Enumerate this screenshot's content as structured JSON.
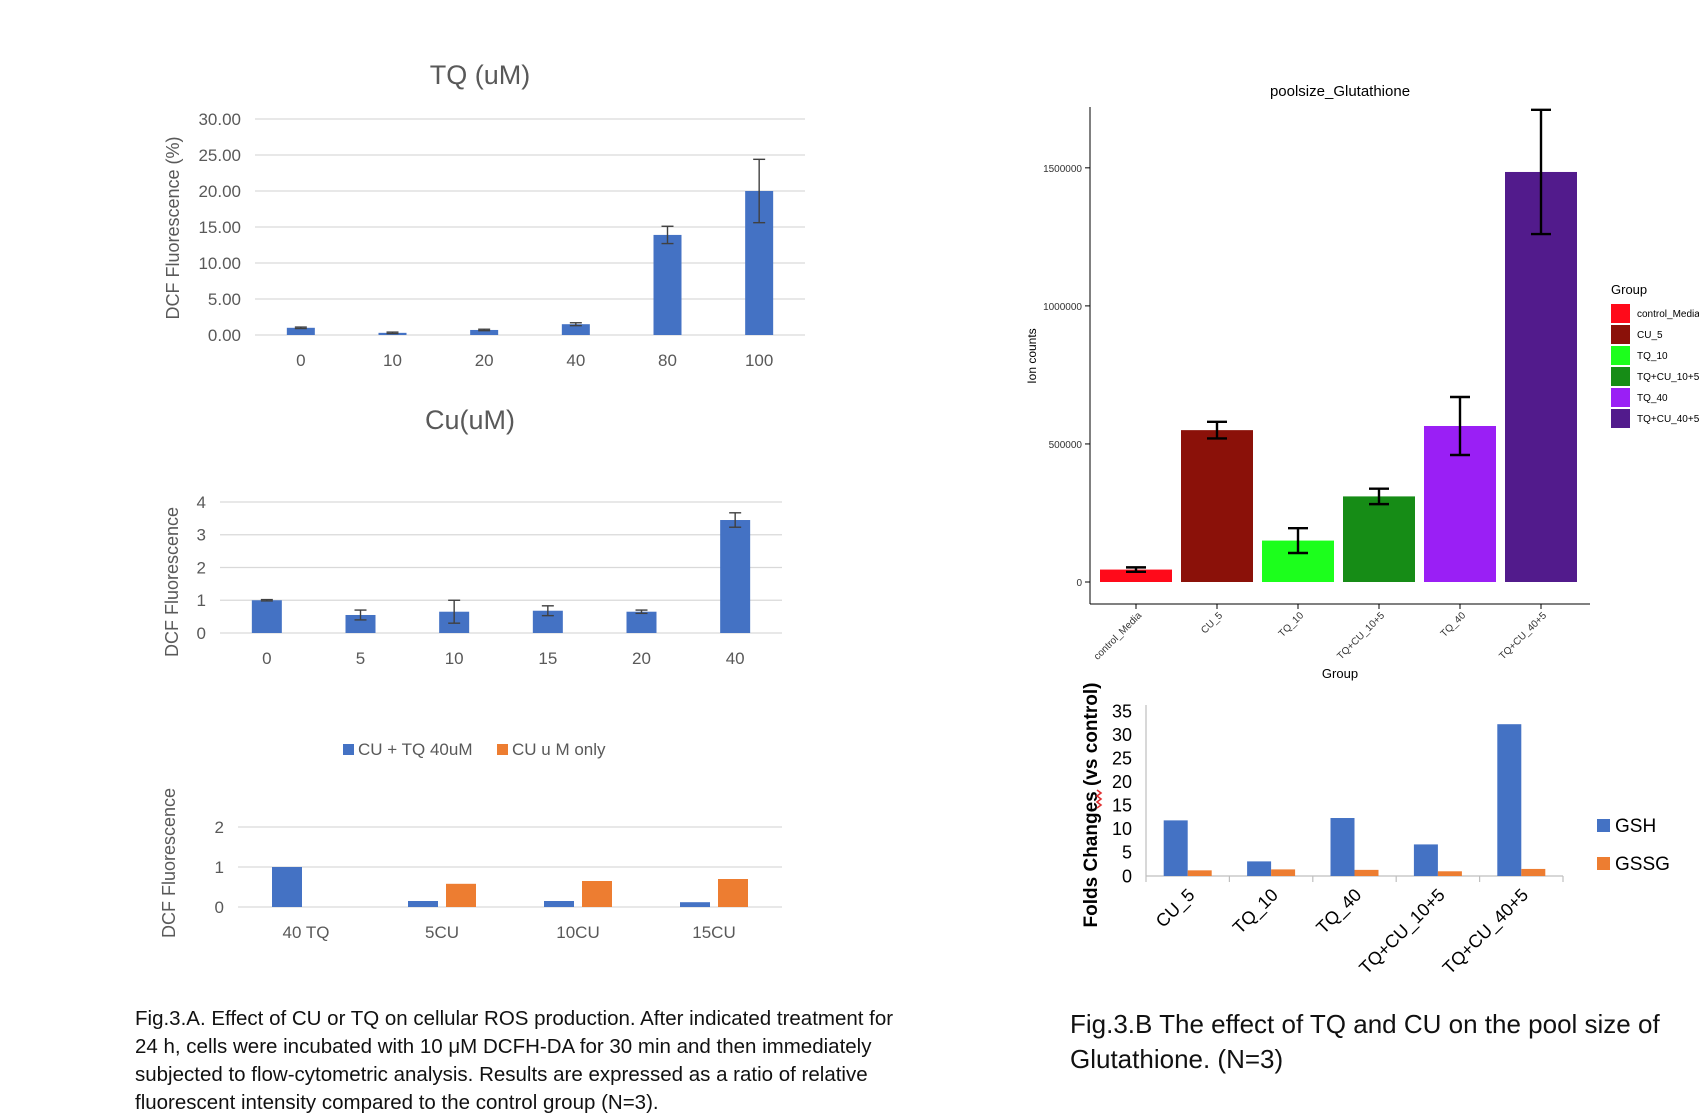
{
  "figure_a": {
    "caption": "Fig.3.A. Effect of CU or TQ on cellular ROS production. After indicated treatment for 24 h, cells were incubated with 10 μM DCFH-DA for 30 min and then immediately subjected to flow-cytometric analysis. Results are expressed as a ratio of relative fluorescent intensity compared to the control group (N=3)."
  },
  "figure_b": {
    "caption": "Fig.3.B The effect of TQ and CU on the pool size of Glutathione. (N=3)"
  },
  "colors": {
    "blue": "#4472C4",
    "orange": "#ED7D31",
    "gridline": "#D9D9D9",
    "axis_text": "#595959"
  },
  "chart_data": [
    {
      "id": "tq",
      "type": "bar",
      "title": "TQ (uM)",
      "ylabel": "DCF Fluorescence (%)",
      "xlabel": "",
      "categories": [
        "0",
        "10",
        "20",
        "40",
        "80",
        "100"
      ],
      "series": [
        {
          "values": [
            1.0,
            0.3,
            0.7,
            1.5,
            13.9,
            20.0
          ],
          "errors": [
            0.1,
            0.1,
            0.1,
            0.2,
            1.2,
            4.4
          ],
          "color": "#4472C4"
        }
      ],
      "ylim": [
        0,
        30
      ],
      "yticks": [
        "0.00",
        "5.00",
        "10.00",
        "15.00",
        "20.00",
        "25.00",
        "30.00"
      ],
      "grid": true
    },
    {
      "id": "cu",
      "type": "bar",
      "title": "Cu(uM)",
      "ylabel": "DCF Fluorescence",
      "xlabel": "",
      "categories": [
        "0",
        "5",
        "10",
        "15",
        "20",
        "40"
      ],
      "series": [
        {
          "values": [
            1.0,
            0.55,
            0.65,
            0.68,
            0.65,
            3.45
          ],
          "errors": [
            0.02,
            0.15,
            0.35,
            0.15,
            0.05,
            0.22
          ],
          "color": "#4472C4"
        }
      ],
      "ylim": [
        0,
        4
      ],
      "yticks": [
        "0",
        "1",
        "2",
        "3",
        "4"
      ],
      "grid": true
    },
    {
      "id": "combo",
      "type": "bar",
      "title": "",
      "ylabel": "DCF Fluorescence",
      "xlabel": "",
      "categories": [
        "40 TQ",
        "5CU",
        "10CU",
        "15CU"
      ],
      "series": [
        {
          "name": "CU + TQ 40uM",
          "values": [
            1.0,
            0.15,
            0.15,
            0.12
          ],
          "color": "#4472C4"
        },
        {
          "name": "CU u M only",
          "values": [
            0,
            0.58,
            0.65,
            0.7
          ],
          "color": "#ED7D31"
        }
      ],
      "ylim": [
        0,
        2
      ],
      "yticks": [
        "0",
        "1",
        "2"
      ],
      "legend": "top",
      "grid": true
    },
    {
      "id": "pool",
      "type": "bar",
      "title": "poolsize_Glutathione",
      "ylabel": "Ion counts",
      "xlabel": "Group",
      "categories": [
        "control_Media",
        "CU_5",
        "TQ_10",
        "TQ+CU_10+5",
        "TQ_40",
        "TQ+CU_40+5"
      ],
      "series": [
        {
          "values": [
            45000,
            550000,
            150000,
            310000,
            565000,
            1485000
          ],
          "errors": [
            8000,
            30000,
            45000,
            28000,
            105000,
            225000
          ],
          "colors": [
            "#FF0A1A",
            "#8B1109",
            "#1CFF1C",
            "#168C16",
            "#9A1FF5",
            "#521B8C"
          ]
        }
      ],
      "ylim": [
        0,
        1800000
      ],
      "yticks": [
        "0",
        "500000",
        "1000000",
        "1500000"
      ],
      "legend_title": "Group",
      "legend": "right",
      "grid": false
    },
    {
      "id": "folds",
      "type": "bar",
      "title": "",
      "ylabel": "Folds Changes (vs control)",
      "xlabel": "",
      "categories": [
        "CU_5",
        "TQ_10",
        "TQ_40",
        "TQ+CU_10+5",
        "TQ+CU_40+5"
      ],
      "series": [
        {
          "name": "GSH",
          "values": [
            11.8,
            3.1,
            12.3,
            6.7,
            32.2
          ],
          "color": "#4472C4"
        },
        {
          "name": "GSSG",
          "values": [
            1.2,
            1.4,
            1.3,
            1.0,
            1.5
          ],
          "color": "#ED7D31"
        }
      ],
      "ylim": [
        0,
        35
      ],
      "yticks": [
        "0",
        "5",
        "10",
        "15",
        "20",
        "25",
        "30",
        "35"
      ],
      "legend": "right",
      "grid": false
    }
  ]
}
